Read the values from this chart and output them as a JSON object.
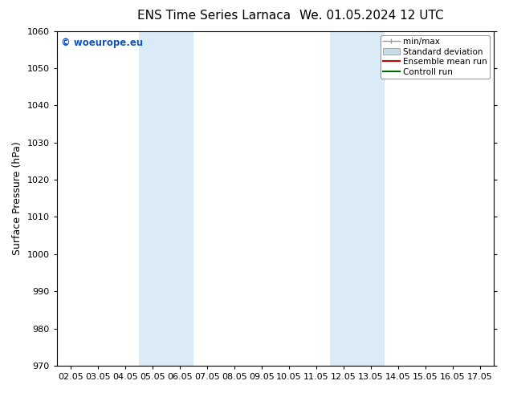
{
  "title_left": "ENS Time Series Larnaca",
  "title_right": "We. 01.05.2024 12 UTC",
  "ylabel": "Surface Pressure (hPa)",
  "ylim": [
    970,
    1060
  ],
  "yticks": [
    970,
    980,
    990,
    1000,
    1010,
    1020,
    1030,
    1040,
    1050,
    1060
  ],
  "xlim_start": -0.5,
  "xlim_end": 15.5,
  "xtick_labels": [
    "02.05",
    "03.05",
    "04.05",
    "05.05",
    "06.05",
    "07.05",
    "08.05",
    "09.05",
    "10.05",
    "11.05",
    "12.05",
    "13.05",
    "14.05",
    "15.05",
    "16.05",
    "17.05"
  ],
  "shaded_bands": [
    {
      "x_start": 2.5,
      "x_end": 4.5,
      "color": "#daeaf7"
    },
    {
      "x_start": 9.5,
      "x_end": 11.5,
      "color": "#daeaf7"
    }
  ],
  "watermark": "© woeurope.eu",
  "watermark_color": "#1155bb",
  "legend_entries": [
    {
      "label": "min/max",
      "color": "#999999",
      "lw": 1.0
    },
    {
      "label": "Standard deviation",
      "color": "#c8dce8",
      "lw": 6
    },
    {
      "label": "Ensemble mean run",
      "color": "#cc0000",
      "lw": 1.5
    },
    {
      "label": "Controll run",
      "color": "#006600",
      "lw": 1.5
    }
  ],
  "bg_color": "#ffffff",
  "title_fontsize": 11,
  "tick_fontsize": 8,
  "ylabel_fontsize": 9
}
